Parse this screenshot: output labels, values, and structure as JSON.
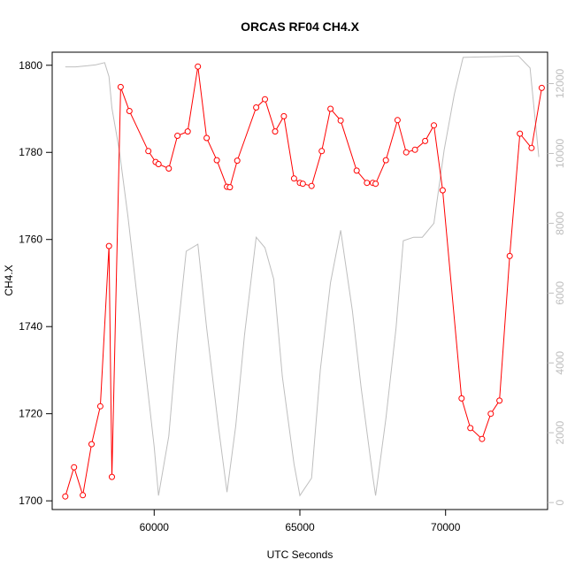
{
  "chart_data": {
    "type": "line",
    "title": "ORCAS RF04 CH4.X",
    "xlabel": "UTC Seconds",
    "ylabel": "CH4.X",
    "xlim": [
      56500,
      73500
    ],
    "ylim": [
      1698,
      1803
    ],
    "y2lim": [
      -200,
      12900
    ],
    "x_ticks": [
      60000,
      65000,
      70000
    ],
    "y_ticks": [
      1700,
      1720,
      1740,
      1760,
      1780,
      1800
    ],
    "y2_ticks": [
      0,
      2000,
      4000,
      6000,
      8000,
      10000,
      12000
    ],
    "colors": {
      "primary": "#ff0000",
      "secondary": "#bebebe"
    },
    "series": [
      {
        "role": "primary",
        "style": "line+points",
        "x": [
          56950,
          57250,
          57550,
          57850,
          58150,
          58450,
          58550,
          58850,
          59150,
          59800,
          60050,
          60150,
          60500,
          60800,
          61150,
          61500,
          61800,
          62150,
          62500,
          62600,
          62850,
          63500,
          63800,
          64150,
          64450,
          64800,
          65000,
          65100,
          65400,
          65750,
          66050,
          66400,
          66950,
          67300,
          67500,
          67600,
          67950,
          68350,
          68650,
          68950,
          69300,
          69600,
          69900,
          70550,
          70850,
          71250,
          71550,
          71850,
          72200,
          72550,
          72950,
          73300
        ],
        "y": [
          1701,
          1707.7,
          1701.3,
          1713,
          1721.7,
          1758.5,
          1705.5,
          1795,
          1789.5,
          1780.3,
          1777.8,
          1777.3,
          1776.3,
          1783.8,
          1784.8,
          1799.7,
          1783.3,
          1778.2,
          1772.1,
          1772.0,
          1778.1,
          1790.3,
          1792.2,
          1784.8,
          1788.3,
          1774,
          1773,
          1772.8,
          1772.3,
          1780.3,
          1790,
          1787.3,
          1775.8,
          1773,
          1773,
          1772.8,
          1778.2,
          1787.4,
          1780,
          1780.6,
          1782.6,
          1786.2,
          1771.3,
          1723.5,
          1716.7,
          1714.2,
          1720,
          1723,
          1756.2,
          1784.3,
          1781,
          1794.8
        ]
      },
      {
        "role": "secondary",
        "style": "line",
        "x": [
          56950,
          57300,
          57700,
          58000,
          58300,
          58450,
          58550,
          58800,
          59100,
          59400,
          59700,
          60000,
          60150,
          60500,
          60800,
          61100,
          61500,
          61800,
          62200,
          62500,
          62800,
          63100,
          63500,
          63800,
          64100,
          64400,
          64800,
          65000,
          65400,
          65700,
          66050,
          66400,
          66800,
          67100,
          67500,
          67600,
          67950,
          68300,
          68550,
          68900,
          69200,
          69600,
          69950,
          70300,
          70600,
          71000,
          71600,
          72000,
          72500,
          72900,
          73200
        ],
        "y": [
          12480,
          12480,
          12510,
          12540,
          12600,
          12200,
          11300,
          10100,
          8200,
          6000,
          3800,
          1600,
          200,
          1900,
          4800,
          7200,
          7400,
          5000,
          2200,
          300,
          2200,
          4800,
          7600,
          7300,
          6400,
          3600,
          1100,
          200,
          700,
          3800,
          6300,
          7800,
          5500,
          3300,
          750,
          200,
          2400,
          5000,
          7500,
          7600,
          7600,
          8000,
          10100,
          11700,
          12750,
          12760,
          12770,
          12780,
          12790,
          12450,
          9900
        ]
      }
    ]
  }
}
